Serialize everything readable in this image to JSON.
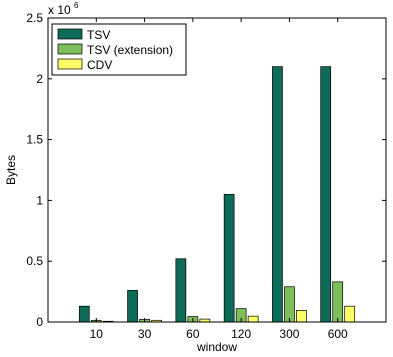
{
  "chart_data": {
    "type": "bar",
    "title": "",
    "xlabel": "window",
    "ylabel": "Bytes",
    "y_multiplier_label": "x 10",
    "y_multiplier_exponent": "6",
    "categories": [
      "10",
      "30",
      "60",
      "120",
      "300",
      "600"
    ],
    "series": [
      {
        "name": "TSV",
        "color": "#0e6b58",
        "values": [
          0.13,
          0.26,
          0.52,
          1.05,
          2.1,
          2.1
        ]
      },
      {
        "name": "TSV (extension)",
        "color": "#7fbf5a",
        "values": [
          0.014,
          0.022,
          0.045,
          0.11,
          0.29,
          0.33
        ]
      },
      {
        "name": "CDV",
        "color": "#ffff66",
        "values": [
          0.006,
          0.014,
          0.024,
          0.048,
          0.095,
          0.13
        ]
      }
    ],
    "ylim": [
      0,
      2.5
    ],
    "yticks": [
      0,
      0.5,
      1,
      1.5,
      2,
      2.5
    ],
    "ytick_labels": [
      "0",
      "0.5",
      "1",
      "1.5",
      "2",
      "2.5"
    ],
    "legend_position": "top-left",
    "grid": false
  }
}
